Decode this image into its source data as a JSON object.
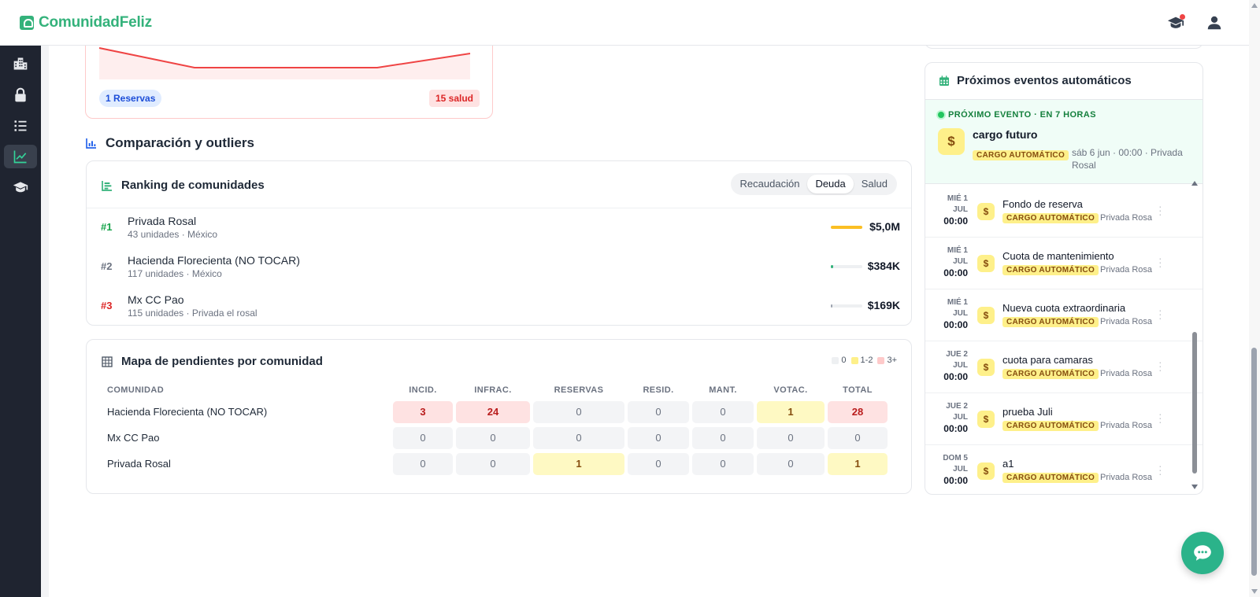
{
  "app": {
    "name": "ComunidadFeliz"
  },
  "colors": {
    "brand": "#34b27b",
    "sidebar_bg": "#1f2430",
    "fab": "#2bb38a"
  },
  "topbar": {
    "icons": [
      "graduation-cap-icon",
      "user-icon"
    ]
  },
  "sidebar": {
    "items": [
      {
        "icon": "buildings-icon",
        "active": false
      },
      {
        "icon": "lock-icon",
        "active": false
      },
      {
        "icon": "list-ordered-icon",
        "active": false
      },
      {
        "icon": "chart-line-icon",
        "active": true
      },
      {
        "icon": "graduation-cap-icon",
        "active": false
      }
    ]
  },
  "mini_chart": {
    "reservas_pill": "1 Reservas",
    "salud_pill": "15 salud"
  },
  "comparison": {
    "title": "Comparación y outliers"
  },
  "ranking": {
    "title": "Ranking de comunidades",
    "tabs": [
      "Recaudación",
      "Deuda",
      "Salud"
    ],
    "active_tab": "Deuda",
    "rows": [
      {
        "rank": "#1",
        "name": "Privada Rosal",
        "sub": "43 unidades · México",
        "value": "$5,0M",
        "bar_fraction": 1.0,
        "rank_color": "#16a34a",
        "bar_color": "#fbbf24"
      },
      {
        "rank": "#2",
        "name": "Hacienda Florecienta (NO TOCAR)",
        "sub": "117 unidades · México",
        "value": "$384K",
        "bar_fraction": 0.077,
        "rank_color": "#6b7280",
        "bar_color": "#34b27b"
      },
      {
        "rank": "#3",
        "name": "Mx CC Pao",
        "sub": "115 unidades · Privada el rosal",
        "value": "$169K",
        "bar_fraction": 0.034,
        "rank_color": "#dc2626",
        "bar_color": "#9ca3af"
      }
    ]
  },
  "heatmap": {
    "title": "Mapa de pendientes por comunidad",
    "legend": [
      "0",
      "1-2",
      "3+"
    ],
    "columns": [
      "COMUNIDAD",
      "INCID.",
      "INFRAC.",
      "RESERVAS",
      "RESID.",
      "MANT.",
      "VOTAC.",
      "TOTAL"
    ],
    "rows": [
      {
        "name": "Hacienda Florecienta (NO TOCAR)",
        "values": [
          "3",
          "24",
          "0",
          "0",
          "0",
          "1",
          "28"
        ]
      },
      {
        "name": "Mx CC Pao",
        "values": [
          "0",
          "0",
          "0",
          "0",
          "0",
          "0",
          "0"
        ]
      },
      {
        "name": "Privada Rosal",
        "values": [
          "0",
          "0",
          "1",
          "0",
          "0",
          "0",
          "1"
        ]
      }
    ]
  },
  "events": {
    "title": "Próximos eventos automáticos",
    "next": {
      "label": "PRÓXIMO EVENTO · EN 7 HORAS",
      "title": "cargo futuro",
      "tag": "CARGO AUTOMÁTICO",
      "meta": "sáb 6 jun · 00:00 · Privada Rosal"
    },
    "items": [
      {
        "day": "MIÉ 1",
        "month": "JUL",
        "time": "00:00",
        "title": "Fondo de reserva",
        "tag": "CARGO AUTOMÁTICO",
        "place": "Privada Rosal"
      },
      {
        "day": "MIÉ 1",
        "month": "JUL",
        "time": "00:00",
        "title": "Cuota de mantenimiento",
        "tag": "CARGO AUTOMÁTICO",
        "place": "Privada Rosal"
      },
      {
        "day": "MIÉ 1",
        "month": "JUL",
        "time": "00:00",
        "title": "Nueva cuota extraordinaria",
        "tag": "CARGO AUTOMÁTICO",
        "place": "Privada Rosal"
      },
      {
        "day": "JUE 2",
        "month": "JUL",
        "time": "00:00",
        "title": "cuota para camaras",
        "tag": "CARGO AUTOMÁTICO",
        "place": "Privada Rosal"
      },
      {
        "day": "JUE 2",
        "month": "JUL",
        "time": "00:00",
        "title": "prueba Juli",
        "tag": "CARGO AUTOMÁTICO",
        "place": "Privada Rosal"
      },
      {
        "day": "DOM 5",
        "month": "JUL",
        "time": "00:00",
        "title": "a1",
        "tag": "CARGO AUTOMÁTICO",
        "place": "Privada Rosal"
      }
    ]
  },
  "fab": {
    "icon": "chat-bubble-icon"
  }
}
